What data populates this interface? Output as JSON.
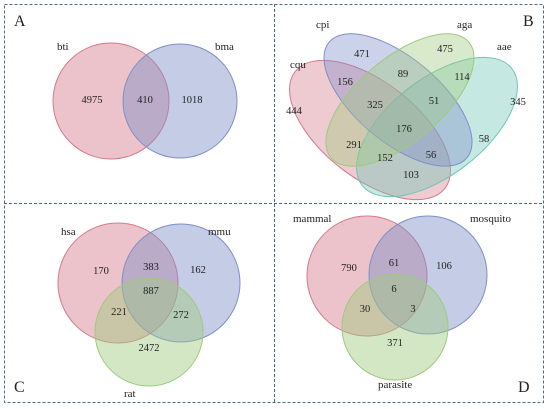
{
  "panels": {
    "A": {
      "letter": "A",
      "sets": [
        "bti",
        "bma"
      ],
      "counts": {
        "only_bti": "4975",
        "bti_bma": "410",
        "only_bma": "1018"
      }
    },
    "B": {
      "letter": "B",
      "sets": [
        "cpi",
        "aga",
        "aae",
        "cqu"
      ],
      "counts": {
        "cpi_only": "471",
        "aga_only": "475",
        "aae_only": "345",
        "cqu_only": "444",
        "cpi_aga": "89",
        "cqu_cpi": "156",
        "aga_aae": "114",
        "cqu_cpi_aga": "325",
        "cpi_aga_aae": "51",
        "all": "176",
        "cpi_aae": "58",
        "cqu_aga": "291",
        "cqu_aga_aae": "152",
        "cqu_cpi_aae": "56",
        "cqu_aae": "103"
      }
    },
    "C": {
      "letter": "C",
      "sets": [
        "hsa",
        "mmu",
        "rat"
      ],
      "counts": {
        "hsa_only": "170",
        "hsa_mmu": "383",
        "mmu_only": "162",
        "all": "887",
        "hsa_rat": "221",
        "mmu_rat": "272",
        "rat_only": "2472"
      }
    },
    "D": {
      "letter": "D",
      "sets": [
        "mammal",
        "mosquito",
        "parasite"
      ],
      "counts": {
        "mammal_only": "790",
        "mammal_mosquito": "61",
        "mosquito_only": "106",
        "all": "6",
        "mammal_parasite": "30",
        "mosquito_parasite": "3",
        "parasite_only": "371"
      }
    }
  },
  "colors": {
    "red": "#d47a8c",
    "blue": "#7f8fc8",
    "green": "#9fc97f",
    "teal": "#6fc7b6",
    "frame": "#4a6a8a"
  }
}
